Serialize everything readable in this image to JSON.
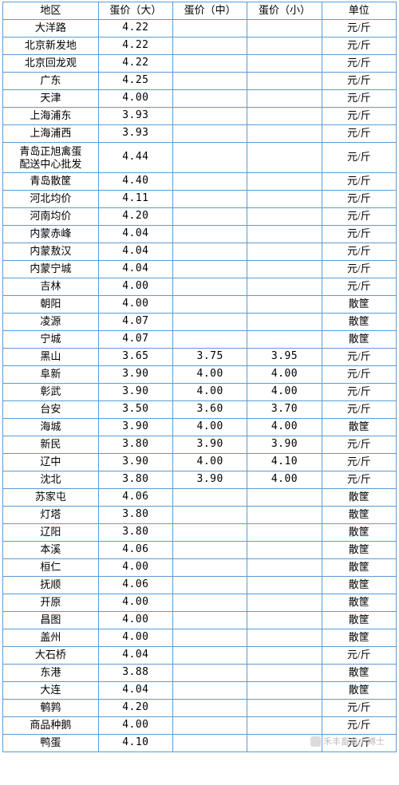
{
  "table": {
    "border_color": "#5b9bd5",
    "text_color": "#000000",
    "background_color": "#ffffff",
    "font_family": "SimSun",
    "columns": [
      {
        "key": "region",
        "label": "地区",
        "width": 118,
        "align": "center"
      },
      {
        "key": "p_l",
        "label": "蛋价（大）",
        "width": 92,
        "align": "center"
      },
      {
        "key": "p_m",
        "label": "蛋价（中）",
        "width": 92,
        "align": "center"
      },
      {
        "key": "p_s",
        "label": "蛋价（小）",
        "width": 92,
        "align": "center"
      },
      {
        "key": "unit",
        "label": "单位",
        "width": 92,
        "align": "center"
      }
    ],
    "rows": [
      {
        "region": "大洋路",
        "p_l": "4.22",
        "p_m": "",
        "p_s": "",
        "unit": "元/斤"
      },
      {
        "region": "北京新发地",
        "p_l": "4.22",
        "p_m": "",
        "p_s": "",
        "unit": "元/斤"
      },
      {
        "region": "北京回龙观",
        "p_l": "4.22",
        "p_m": "",
        "p_s": "",
        "unit": "元/斤"
      },
      {
        "region": "广东",
        "p_l": "4.25",
        "p_m": "",
        "p_s": "",
        "unit": "元/斤"
      },
      {
        "region": "天津",
        "p_l": "4.00",
        "p_m": "",
        "p_s": "",
        "unit": "元/斤"
      },
      {
        "region": "上海浦东",
        "p_l": "3.93",
        "p_m": "",
        "p_s": "",
        "unit": "元/斤"
      },
      {
        "region": "上海浦西",
        "p_l": "3.93",
        "p_m": "",
        "p_s": "",
        "unit": "元/斤"
      },
      {
        "region": "青岛正旭禽蛋\n配送中心批发",
        "p_l": "4.44",
        "p_m": "",
        "p_s": "",
        "unit": "元/斤",
        "multiline": true
      },
      {
        "region": "青岛散筐",
        "p_l": "4.40",
        "p_m": "",
        "p_s": "",
        "unit": "元/斤"
      },
      {
        "region": "河北均价",
        "p_l": "4.11",
        "p_m": "",
        "p_s": "",
        "unit": "元/斤"
      },
      {
        "region": "河南均价",
        "p_l": "4.20",
        "p_m": "",
        "p_s": "",
        "unit": "元/斤"
      },
      {
        "region": "内蒙赤峰",
        "p_l": "4.04",
        "p_m": "",
        "p_s": "",
        "unit": "元/斤"
      },
      {
        "region": "内蒙敖汉",
        "p_l": "4.04",
        "p_m": "",
        "p_s": "",
        "unit": "元/斤"
      },
      {
        "region": "内蒙宁城",
        "p_l": "4.04",
        "p_m": "",
        "p_s": "",
        "unit": "元/斤"
      },
      {
        "region": "吉林",
        "p_l": "4.00",
        "p_m": "",
        "p_s": "",
        "unit": "元/斤"
      },
      {
        "region": "朝阳",
        "p_l": "4.00",
        "p_m": "",
        "p_s": "",
        "unit": "散筐"
      },
      {
        "region": "凌源",
        "p_l": "4.07",
        "p_m": "",
        "p_s": "",
        "unit": "散筐"
      },
      {
        "region": "宁城",
        "p_l": "4.07",
        "p_m": "",
        "p_s": "",
        "unit": "散筐"
      },
      {
        "region": "黑山",
        "p_l": "3.65",
        "p_m": "3.75",
        "p_s": "3.95",
        "unit": "元/斤"
      },
      {
        "region": "阜新",
        "p_l": "3.90",
        "p_m": "4.00",
        "p_s": "4.00",
        "unit": "元/斤"
      },
      {
        "region": "彰武",
        "p_l": "3.90",
        "p_m": "4.00",
        "p_s": "4.00",
        "unit": "元/斤"
      },
      {
        "region": "台安",
        "p_l": "3.50",
        "p_m": "3.60",
        "p_s": "3.70",
        "unit": "元/斤"
      },
      {
        "region": "海城",
        "p_l": "3.90",
        "p_m": "4.00",
        "p_s": "4.00",
        "unit": "散筐"
      },
      {
        "region": "新民",
        "p_l": "3.80",
        "p_m": "3.90",
        "p_s": "3.90",
        "unit": "元/斤"
      },
      {
        "region": "辽中",
        "p_l": "3.90",
        "p_m": "4.00",
        "p_s": "4.10",
        "unit": "元/斤"
      },
      {
        "region": "沈北",
        "p_l": "3.80",
        "p_m": "3.90",
        "p_s": "4.00",
        "unit": "元/斤"
      },
      {
        "region": "苏家屯",
        "p_l": "4.06",
        "p_m": "",
        "p_s": "",
        "unit": "散筐"
      },
      {
        "region": "灯塔",
        "p_l": "3.80",
        "p_m": "",
        "p_s": "",
        "unit": "散筐"
      },
      {
        "region": "辽阳",
        "p_l": "3.80",
        "p_m": "",
        "p_s": "",
        "unit": "散筐"
      },
      {
        "region": "本溪",
        "p_l": "4.06",
        "p_m": "",
        "p_s": "",
        "unit": "散筐"
      },
      {
        "region": "桓仁",
        "p_l": "4.00",
        "p_m": "",
        "p_s": "",
        "unit": "散筐"
      },
      {
        "region": "抚顺",
        "p_l": "4.06",
        "p_m": "",
        "p_s": "",
        "unit": "散筐"
      },
      {
        "region": "开原",
        "p_l": "4.00",
        "p_m": "",
        "p_s": "",
        "unit": "散筐"
      },
      {
        "region": "昌图",
        "p_l": "4.00",
        "p_m": "",
        "p_s": "",
        "unit": "散筐"
      },
      {
        "region": "盖州",
        "p_l": "4.00",
        "p_m": "",
        "p_s": "",
        "unit": "散筐"
      },
      {
        "region": "大石桥",
        "p_l": "4.04",
        "p_m": "",
        "p_s": "",
        "unit": "元/斤"
      },
      {
        "region": "东港",
        "p_l": "3.88",
        "p_m": "",
        "p_s": "",
        "unit": "散筐"
      },
      {
        "region": "大连",
        "p_l": "4.04",
        "p_m": "",
        "p_s": "",
        "unit": "散筐"
      },
      {
        "region": "鹌鹑",
        "p_l": "4.20",
        "p_m": "",
        "p_s": "",
        "unit": "元/斤"
      },
      {
        "region": "商品种鹅",
        "p_l": "4.00",
        "p_m": "",
        "p_s": "",
        "unit": "元/斤"
      },
      {
        "region": "鸭蛋",
        "p_l": "4.10",
        "p_m": "",
        "p_s": "",
        "unit": "元/斤"
      }
    ]
  },
  "watermark": {
    "text": "禾丰畜禽小博士"
  }
}
